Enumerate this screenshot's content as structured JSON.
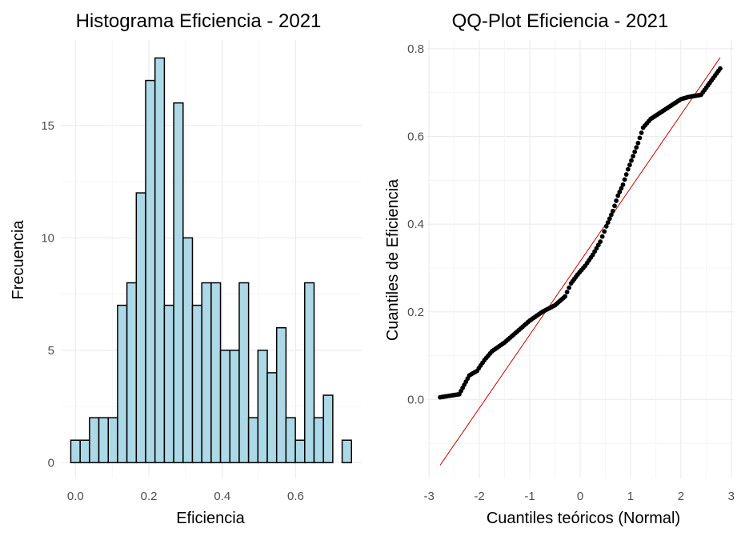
{
  "chart_data": [
    {
      "type": "bar",
      "subtype": "histogram",
      "title": "Histograma Eficiencia - 2021",
      "xlabel": "Eficiencia",
      "ylabel": "Frecuencia",
      "xlim": [
        -0.04,
        0.78
      ],
      "ylim": [
        -0.7,
        18.8
      ],
      "x_ticks": [
        0.0,
        0.2,
        0.4,
        0.6
      ],
      "x_tick_labels": [
        "0.0",
        "0.2",
        "0.4",
        "0.6"
      ],
      "y_ticks": [
        0,
        5,
        10,
        15
      ],
      "y_tick_labels": [
        "0",
        "5",
        "10",
        "15"
      ],
      "bin_width": 0.0255,
      "bin_start": -0.0128,
      "values": [
        1,
        1,
        2,
        2,
        2,
        7,
        8,
        12,
        17,
        18,
        7,
        16,
        10,
        7,
        8,
        8,
        5,
        5,
        8,
        2,
        5,
        4,
        6,
        2,
        1,
        8,
        2,
        3,
        0,
        1
      ],
      "bar_color": "#add8e6",
      "edge_color": "#000000",
      "grid": true
    },
    {
      "type": "scatter",
      "subtype": "qq-plot",
      "title": "QQ-Plot Eficiencia - 2021",
      "xlabel": "Cuantiles teóricos (Normal)",
      "ylabel": "Cuantiles de Eficiencia",
      "xlim": [
        -3.05,
        3.05
      ],
      "ylim": [
        -0.18,
        0.82
      ],
      "x_ticks": [
        -3,
        -2,
        -1,
        0,
        1,
        2,
        3
      ],
      "x_tick_labels": [
        "-3",
        "-2",
        "-1",
        "0",
        "1",
        "2",
        "3"
      ],
      "y_ticks": [
        0.0,
        0.2,
        0.4,
        0.6,
        0.8
      ],
      "y_tick_labels": [
        "0.0",
        "0.2",
        "0.4",
        "0.6",
        "0.8"
      ],
      "point_color": "#000000",
      "line_color": "#cc0000",
      "reference_line": [
        [
          -2.78,
          -0.15
        ],
        [
          2.78,
          0.78
        ]
      ],
      "key_points": [
        [
          -2.78,
          0.005
        ],
        [
          -2.4,
          0.012
        ],
        [
          -2.2,
          0.055
        ],
        [
          -2.05,
          0.065
        ],
        [
          -1.9,
          0.09
        ],
        [
          -1.75,
          0.11
        ],
        [
          -1.5,
          0.13
        ],
        [
          -1.25,
          0.155
        ],
        [
          -1.0,
          0.18
        ],
        [
          -0.75,
          0.2
        ],
        [
          -0.5,
          0.215
        ],
        [
          -0.3,
          0.235
        ],
        [
          -0.18,
          0.265
        ],
        [
          -0.05,
          0.285
        ],
        [
          0.1,
          0.305
        ],
        [
          0.25,
          0.33
        ],
        [
          0.4,
          0.36
        ],
        [
          0.52,
          0.395
        ],
        [
          0.65,
          0.43
        ],
        [
          0.75,
          0.465
        ],
        [
          0.85,
          0.49
        ],
        [
          0.95,
          0.525
        ],
        [
          1.05,
          0.555
        ],
        [
          1.15,
          0.585
        ],
        [
          1.25,
          0.62
        ],
        [
          1.4,
          0.64
        ],
        [
          1.6,
          0.655
        ],
        [
          1.8,
          0.67
        ],
        [
          2.0,
          0.685
        ],
        [
          2.15,
          0.69
        ],
        [
          2.4,
          0.695
        ],
        [
          2.78,
          0.755
        ]
      ],
      "grid": true
    }
  ]
}
